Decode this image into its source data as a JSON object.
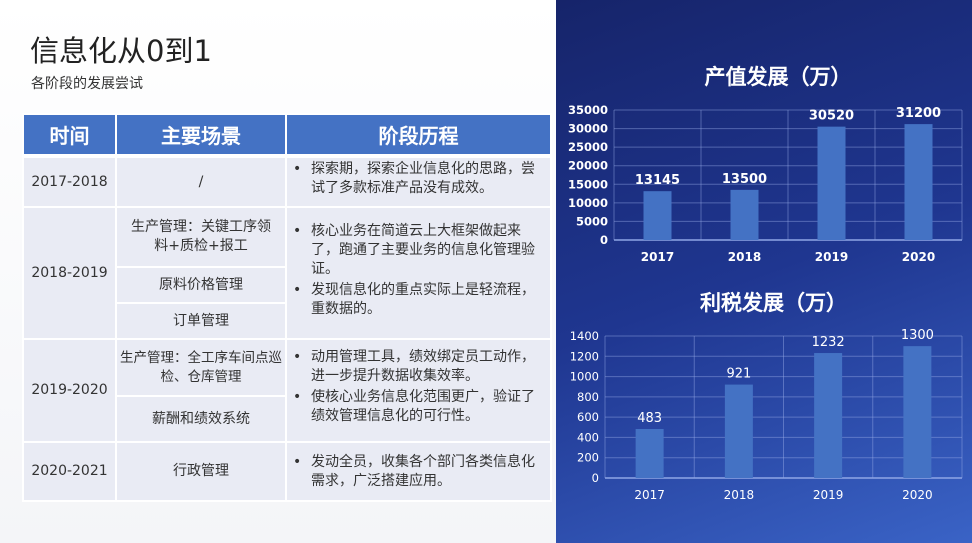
{
  "title": "信息化从0到1",
  "subtitle": "各阶段的发展尝试",
  "table": {
    "headers": [
      "时间",
      "主要场景",
      "阶段历程"
    ],
    "rows": [
      {
        "period": "2017-2018",
        "scenes": [
          "/"
        ],
        "stages": [
          "探索期，探索企业信息化的思路，尝试了多款标准产品没有成效。"
        ]
      },
      {
        "period": "2018-2019",
        "scenes": [
          "生产管理：关键工序领料+质检+报工",
          "原料价格管理",
          "订单管理"
        ],
        "stages": [
          "核心业务在简道云上大框架做起来了，跑通了主要业务的信息化管理验证。",
          "发现信息化的重点实际上是轻流程，重数据的。"
        ]
      },
      {
        "period": "2019-2020",
        "scenes": [
          "生产管理：全工序车间点巡检、仓库管理",
          "薪酬和绩效系统"
        ],
        "stages": [
          "动用管理工具，绩效绑定员工动作，进一步提升数据收集效率。",
          "使核心业务信息化范围更广，验证了绩效管理信息化的可行性。"
        ]
      },
      {
        "period": "2020-2021",
        "scenes": [
          "行政管理"
        ],
        "stages": [
          "发动全员，收集各个部门各类信息化需求，广泛搭建应用。"
        ]
      }
    ]
  },
  "chart_data": [
    {
      "type": "bar",
      "title": "产值发展（万）",
      "categories": [
        "2017",
        "2018",
        "2019",
        "2020"
      ],
      "values": [
        13145,
        13500,
        30520,
        31200
      ],
      "yticks": [
        "0",
        "5000",
        "10000",
        "15000",
        "20000",
        "25000",
        "30000",
        "35000"
      ],
      "ylim": [
        0,
        35000
      ],
      "grid": true,
      "bar_color": "#4472c4"
    },
    {
      "type": "bar",
      "title": "利税发展（万）",
      "categories": [
        "2017",
        "2018",
        "2019",
        "2020"
      ],
      "values": [
        483,
        921,
        1232,
        1300
      ],
      "yticks": [
        "0",
        "200",
        "400",
        "600",
        "800",
        "1000",
        "1200",
        "1400"
      ],
      "ylim": [
        0,
        1400
      ],
      "grid": true,
      "bar_color": "#4472c4"
    }
  ]
}
